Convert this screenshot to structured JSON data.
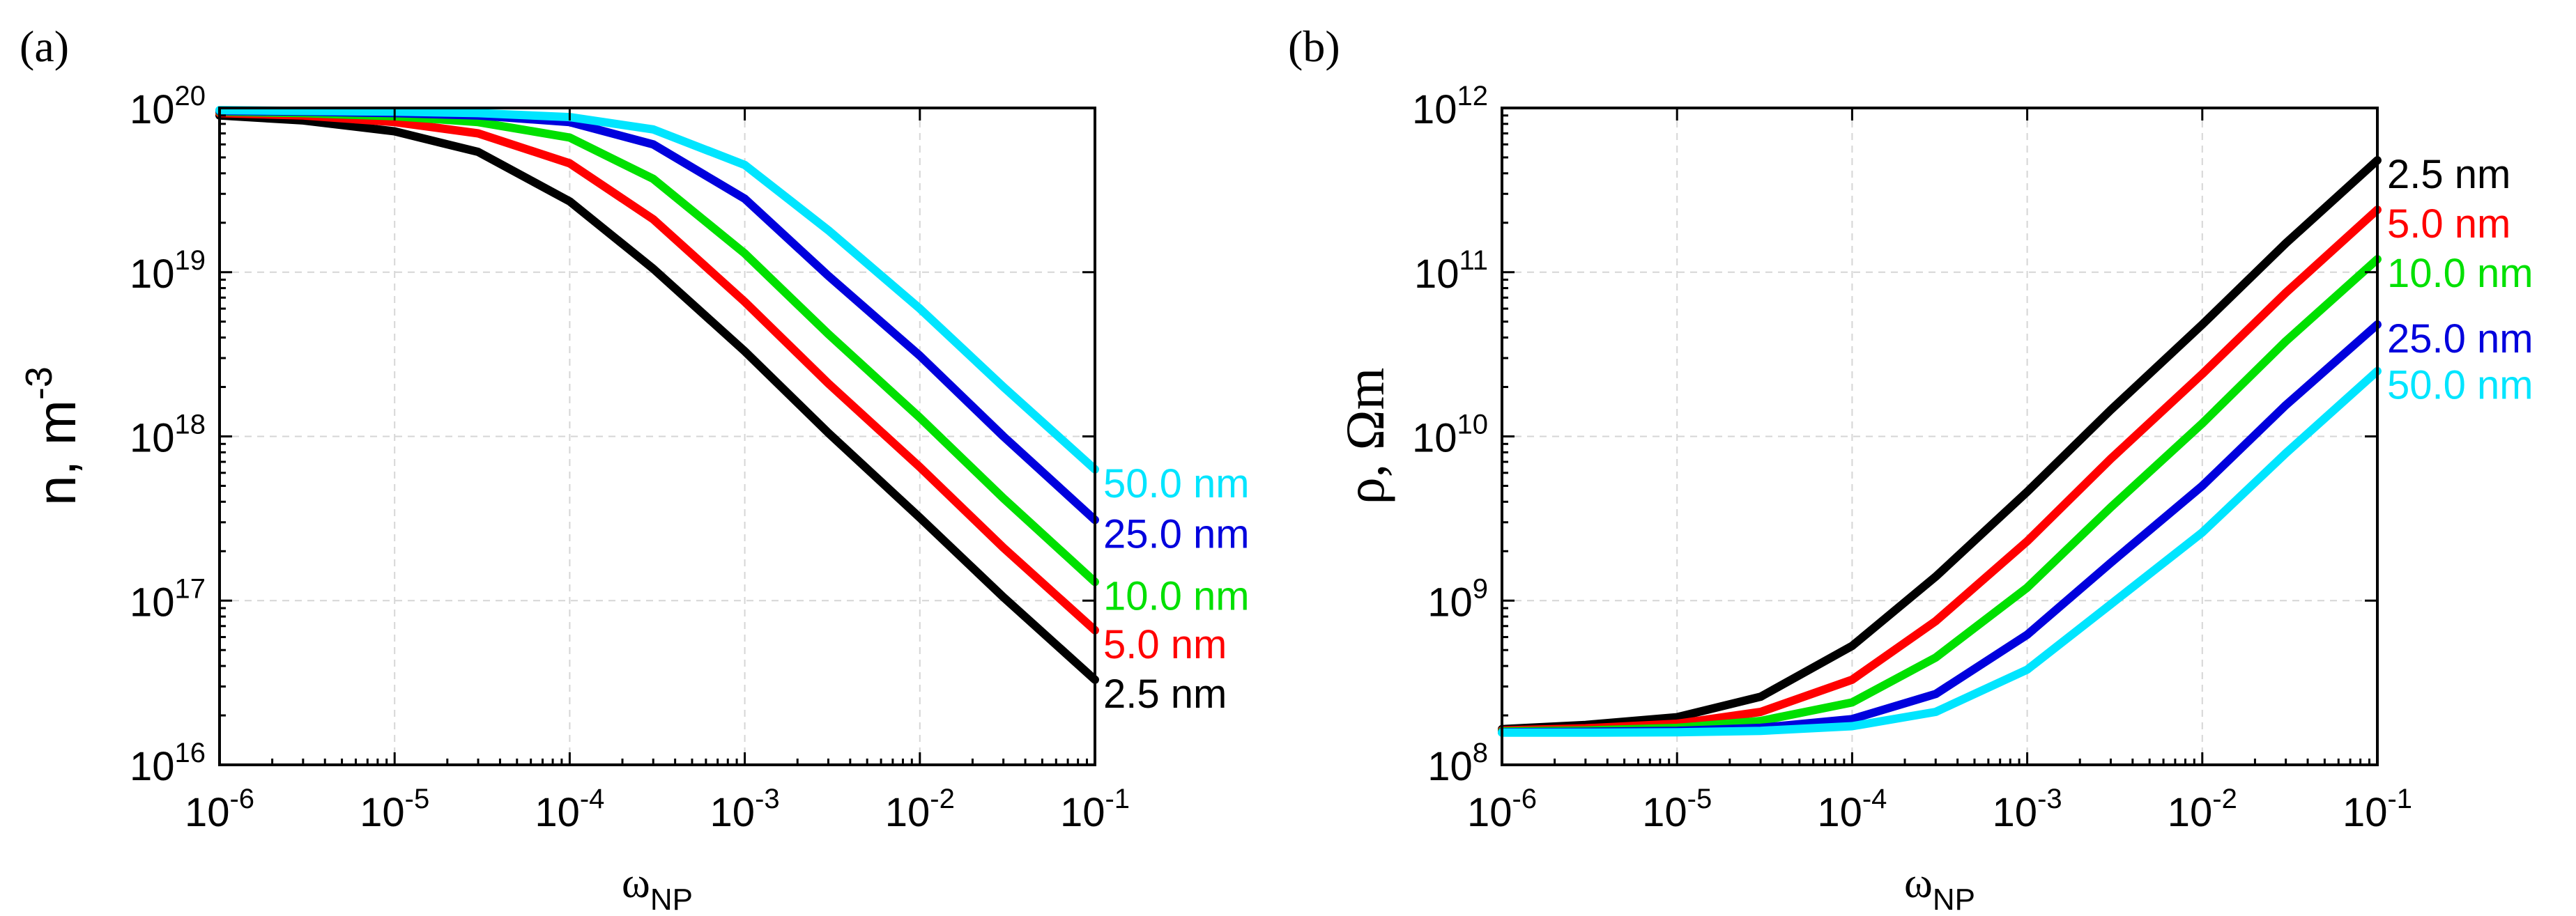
{
  "chart_data": [
    {
      "id": "a",
      "type": "line",
      "panel_label": "(a)",
      "title": "",
      "xscale": "log",
      "yscale": "log",
      "xlim": [
        1e-06,
        0.1
      ],
      "ylim": [
        1e+16,
        1e+20
      ],
      "xlabel": {
        "base": "ω",
        "sub": "NP"
      },
      "ylabel": {
        "base": "n, m",
        "sup": "-3"
      },
      "xticks": [
        {
          "value": 1e-06,
          "base": "10",
          "exp": "-6"
        },
        {
          "value": 1e-05,
          "base": "10",
          "exp": "-5"
        },
        {
          "value": 0.0001,
          "base": "10",
          "exp": "-4"
        },
        {
          "value": 0.001,
          "base": "10",
          "exp": "-3"
        },
        {
          "value": 0.01,
          "base": "10",
          "exp": "-2"
        },
        {
          "value": 0.1,
          "base": "10",
          "exp": "-1"
        }
      ],
      "yticks": [
        {
          "value": 1e+16,
          "base": "10",
          "exp": "16"
        },
        {
          "value": 1e+17,
          "base": "10",
          "exp": "17"
        },
        {
          "value": 1e+18,
          "base": "10",
          "exp": "18"
        },
        {
          "value": 1e+19,
          "base": "10",
          "exp": "19"
        },
        {
          "value": 1e+20,
          "base": "10",
          "exp": "20"
        }
      ],
      "grid": true,
      "x": [
        1e-06,
        3e-06,
        1e-05,
        3e-05,
        0.0001,
        0.0003,
        0.001,
        0.003,
        0.01,
        0.03,
        0.1
      ],
      "series": [
        {
          "name": "2.5 nm",
          "label": "2.5 nm",
          "color": "#000000",
          "values": [
            9e+19,
            8.4e+19,
            7.2e+19,
            5.4e+19,
            2.7e+19,
            1.05e+19,
            3.3e+18,
            1.05e+18,
            3.2e+17,
            1.05e+17,
            3.3e+16
          ]
        },
        {
          "name": "5.0 nm",
          "label": "5.0 nm",
          "color": "#ff0000",
          "values": [
            9.3e+19,
            9e+19,
            8.2e+19,
            7e+19,
            4.6e+19,
            2.1e+19,
            6.6e+18,
            2.1e+18,
            6.5e+17,
            2.1e+17,
            6.6e+16
          ]
        },
        {
          "name": "10.0 nm",
          "label": "10.0 nm",
          "color": "#00e000",
          "values": [
            9.5e+19,
            9.3e+19,
            8.9e+19,
            8.2e+19,
            6.6e+19,
            3.7e+19,
            1.3e+19,
            4.2e+18,
            1.3e+18,
            4.2e+17,
            1.3e+17
          ]
        },
        {
          "name": "25.0 nm",
          "label": "25.0 nm",
          "color": "#0000dd",
          "values": [
            9.6e+19,
            9.5e+19,
            9.3e+19,
            9e+19,
            8.2e+19,
            6e+19,
            2.8e+19,
            9.5e+18,
            3.1e+18,
            1e+18,
            3.1e+17
          ]
        },
        {
          "name": "50.0 nm",
          "label": "50.0 nm",
          "color": "#00e5ff",
          "values": [
            9.7e+19,
            9.6e+19,
            9.5e+19,
            9.3e+19,
            8.8e+19,
            7.4e+19,
            4.5e+19,
            1.8e+19,
            6e+18,
            2e+18,
            6.3e+17
          ]
        }
      ]
    },
    {
      "id": "b",
      "type": "line",
      "panel_label": "(b)",
      "title": "",
      "xscale": "log",
      "yscale": "log",
      "xlim": [
        1e-06,
        0.1
      ],
      "ylim": [
        100000000.0,
        1000000000000.0
      ],
      "xlabel": {
        "base": "ω",
        "sub": "NP"
      },
      "ylabel": {
        "base": "ρ, Ωm"
      },
      "xticks": [
        {
          "value": 1e-06,
          "base": "10",
          "exp": "-6"
        },
        {
          "value": 1e-05,
          "base": "10",
          "exp": "-5"
        },
        {
          "value": 0.0001,
          "base": "10",
          "exp": "-4"
        },
        {
          "value": 0.001,
          "base": "10",
          "exp": "-3"
        },
        {
          "value": 0.01,
          "base": "10",
          "exp": "-2"
        },
        {
          "value": 0.1,
          "base": "10",
          "exp": "-1"
        }
      ],
      "yticks": [
        {
          "value": 100000000.0,
          "base": "10",
          "exp": "8"
        },
        {
          "value": 1000000000.0,
          "base": "10",
          "exp": "9"
        },
        {
          "value": 10000000000.0,
          "base": "10",
          "exp": "10"
        },
        {
          "value": 100000000000.0,
          "base": "10",
          "exp": "11"
        },
        {
          "value": 1000000000000.0,
          "base": "10",
          "exp": "12"
        }
      ],
      "grid": true,
      "x": [
        1e-06,
        3e-06,
        1e-05,
        3e-05,
        0.0001,
        0.0003,
        0.001,
        0.003,
        0.01,
        0.03,
        0.1
      ],
      "series": [
        {
          "name": "2.5 nm",
          "label": "2.5 nm",
          "color": "#000000",
          "values": [
            165000000.0,
            175000000.0,
            195000000.0,
            260000000.0,
            530000000.0,
            1400000000.0,
            4600000000.0,
            14500000000.0,
            48000000000.0,
            150000000000.0,
            480000000000.0
          ]
        },
        {
          "name": "5.0 nm",
          "label": "5.0 nm",
          "color": "#ff0000",
          "values": [
            162000000.0,
            167000000.0,
            178000000.0,
            210000000.0,
            330000000.0,
            750000000.0,
            2300000000.0,
            7300000000.0,
            24000000000.0,
            75000000000.0,
            240000000000.0
          ]
        },
        {
          "name": "10.0 nm",
          "label": "10.0 nm",
          "color": "#00e000",
          "values": [
            160000000.0,
            162000000.0,
            168000000.0,
            185000000.0,
            240000000.0,
            450000000.0,
            1200000000.0,
            3700000000.0,
            12000000000.0,
            38000000000.0,
            120000000000.0
          ]
        },
        {
          "name": "25.0 nm",
          "label": "25.0 nm",
          "color": "#0000dd",
          "values": [
            158000000.0,
            159000000.0,
            161000000.0,
            168000000.0,
            190000000.0,
            270000000.0,
            620000000.0,
            1700000000.0,
            5000000000.0,
            15500000000.0,
            48000000000.0
          ]
        },
        {
          "name": "50.0 nm",
          "label": "50.0 nm",
          "color": "#00e5ff",
          "values": [
            157000000.0,
            157000000.0,
            158000000.0,
            161000000.0,
            172000000.0,
            210000000.0,
            380000000.0,
            950000000.0,
            2600000000.0,
            7900000000.0,
            25000000000.0
          ]
        }
      ]
    }
  ]
}
